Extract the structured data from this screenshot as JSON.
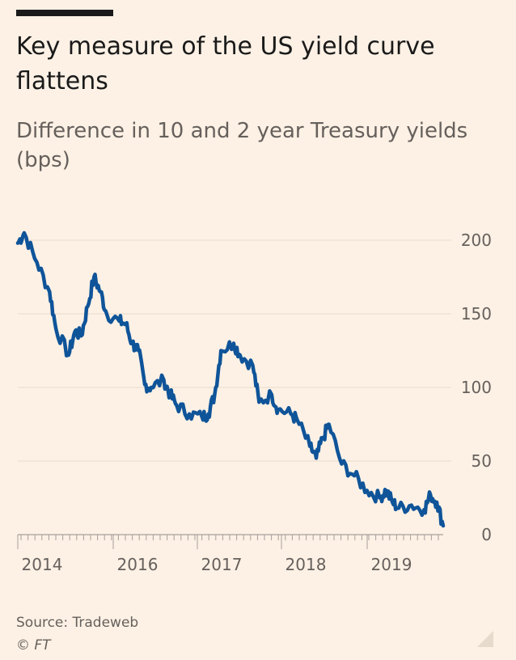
{
  "header": {
    "title": "Key measure of the US yield curve flattens",
    "subtitle": "Difference in 10 and 2 year Treasury yields (bps)"
  },
  "footer": {
    "source": "Source: Tradeweb",
    "copyright": "© FT"
  },
  "colors": {
    "background": "#fdf1e5",
    "line": "#0f5499",
    "grid": "#e6dacd",
    "text": "#66605c"
  },
  "chart_data": {
    "type": "line",
    "title": "Key measure of the US yield curve flattens",
    "subtitle": "Difference in 10 and 2 year Treasury yields (bps)",
    "xlabel": "",
    "ylabel": "",
    "ylim": [
      0,
      200
    ],
    "yticks": [
      0,
      50,
      100,
      150,
      200
    ],
    "ytick_labels": [
      "0",
      "50",
      "100",
      "150",
      "200"
    ],
    "y_axis_side": "right",
    "grid": true,
    "legend": "none",
    "x_tick_labels": [
      "2014",
      "2016",
      "2017",
      "2018",
      "2019"
    ],
    "series": [
      {
        "name": "",
        "color": "#0f5499",
        "x": [
          "2014-01",
          "2014-02",
          "2014-04",
          "2014-06",
          "2014-07",
          "2014-09",
          "2014-10",
          "2014-11",
          "2014-12",
          "2015-01",
          "2015-02",
          "2015-03",
          "2015-05",
          "2015-06",
          "2015-07",
          "2015-08",
          "2015-09",
          "2015-10",
          "2015-12",
          "2016-01",
          "2016-02",
          "2016-04",
          "2016-06",
          "2016-07",
          "2016-08",
          "2016-09",
          "2016-11",
          "2016-12",
          "2017-02",
          "2017-03",
          "2017-05",
          "2017-06",
          "2017-08",
          "2017-09",
          "2017-11",
          "2017-12",
          "2018-01",
          "2018-02",
          "2018-04",
          "2018-06",
          "2018-08",
          "2018-10",
          "2018-11",
          "2018-12",
          "2019-01",
          "2019-03",
          "2019-05",
          "2019-06",
          "2019-07",
          "2019-08"
        ],
        "values": [
          198,
          205,
          185,
          165,
          140,
          122,
          138,
          135,
          155,
          175,
          165,
          150,
          145,
          143,
          130,
          125,
          102,
          100,
          105,
          95,
          88,
          82,
          80,
          82,
          95,
          125,
          130,
          122,
          115,
          90,
          95,
          85,
          82,
          78,
          60,
          52,
          65,
          75,
          48,
          40,
          30,
          25,
          30,
          22,
          18,
          20,
          17,
          27,
          22,
          6
        ]
      }
    ]
  }
}
